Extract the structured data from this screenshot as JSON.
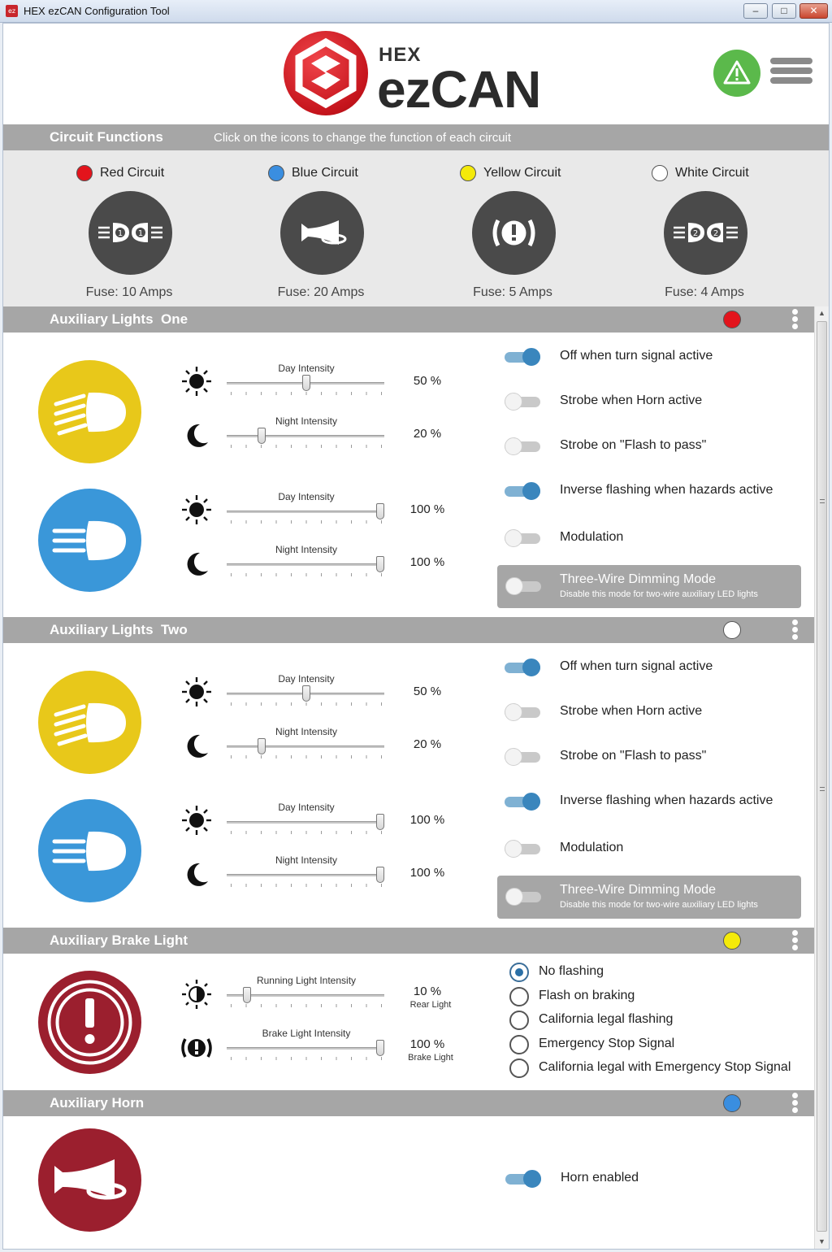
{
  "window": {
    "title": "HEX ezCAN Configuration Tool",
    "app_icon_text": "ez"
  },
  "header": {
    "brand_small": "HEX",
    "brand_large": "ezCAN",
    "warning_icon": "warning-icon",
    "menu_icon": "hamburger-icon"
  },
  "circuit_functions": {
    "title": "Circuit Functions",
    "hint": "Click on the icons to change the function of each circuit",
    "circuits": [
      {
        "name": "Red Circuit",
        "color": "#e3141c",
        "fuse": "Fuse: 10 Amps",
        "icon": "auxiliary-lights-1-icon",
        "num": "1"
      },
      {
        "name": "Blue Circuit",
        "color": "#3a8ee0",
        "fuse": "Fuse: 20 Amps",
        "icon": "horn-icon"
      },
      {
        "name": "Yellow Circuit",
        "color": "#f4ea0a",
        "fuse": "Fuse: 5 Amps",
        "icon": "brake-warning-icon"
      },
      {
        "name": "White Circuit",
        "color": "#ffffff",
        "fuse": "Fuse: 4 Amps",
        "icon": "auxiliary-lights-2-icon",
        "num": "2"
      }
    ]
  },
  "aux_one": {
    "title": "Auxiliary Lights  One",
    "dot_color": "#e3141c",
    "lights": [
      {
        "color": "#e8c81a",
        "day_label": "Day Intensity",
        "day_value": "50 %",
        "day_fraction": 0.5,
        "night_label": "Night Intensity",
        "night_value": "20 %",
        "night_fraction": 0.2
      },
      {
        "color": "#3a97d9",
        "day_label": "Day Intensity",
        "day_value": "100 %",
        "day_fraction": 1.0,
        "night_label": "Night Intensity",
        "night_value": "100 %",
        "night_fraction": 1.0
      }
    ],
    "toggles": [
      {
        "label": "Off when turn signal active",
        "on": true
      },
      {
        "label": "Strobe when Horn active",
        "on": false
      },
      {
        "label": "Strobe on \"Flash to pass\"",
        "on": false
      },
      {
        "label": "Inverse flashing when hazards active",
        "on": true
      },
      {
        "label": "Modulation",
        "on": false
      }
    ],
    "dimming": {
      "title": "Three-Wire Dimming Mode",
      "subtitle": "Disable this mode for two-wire auxiliary LED lights",
      "on": false
    }
  },
  "aux_two": {
    "title": "Auxiliary Lights  Two",
    "dot_color": "#ffffff",
    "lights": [
      {
        "color": "#e8c81a",
        "day_label": "Day Intensity",
        "day_value": "50 %",
        "day_fraction": 0.5,
        "night_label": "Night Intensity",
        "night_value": "20 %",
        "night_fraction": 0.2
      },
      {
        "color": "#3a97d9",
        "day_label": "Day Intensity",
        "day_value": "100 %",
        "day_fraction": 1.0,
        "night_label": "Night Intensity",
        "night_value": "100 %",
        "night_fraction": 1.0
      }
    ],
    "toggles": [
      {
        "label": "Off when turn signal active",
        "on": true
      },
      {
        "label": "Strobe when Horn active",
        "on": false
      },
      {
        "label": "Strobe on \"Flash to pass\"",
        "on": false
      },
      {
        "label": "Inverse flashing when hazards active",
        "on": true
      },
      {
        "label": "Modulation",
        "on": false
      }
    ],
    "dimming": {
      "title": "Three-Wire Dimming Mode",
      "subtitle": "Disable this mode for two-wire auxiliary LED lights",
      "on": false
    }
  },
  "brake": {
    "title": "Auxiliary Brake Light",
    "dot_color": "#f4ea0a",
    "icon_color": "#9b1f2e",
    "running_label": "Running Light Intensity",
    "running_value": "10 %",
    "running_sub": "Rear Light",
    "running_fraction": 0.1,
    "brake_label": "Brake Light Intensity",
    "brake_value": "100 %",
    "brake_sub": "Brake Light",
    "brake_fraction": 1.0,
    "options": [
      "No flashing",
      "Flash on braking",
      "California legal flashing",
      "Emergency Stop Signal",
      "California legal with Emergency Stop Signal"
    ],
    "selected": "No flashing"
  },
  "horn": {
    "title": "Auxiliary Horn",
    "dot_color": "#3a8ee0",
    "icon_color": "#9b1f2e",
    "toggle_label": "Horn enabled",
    "toggle_on": true
  }
}
